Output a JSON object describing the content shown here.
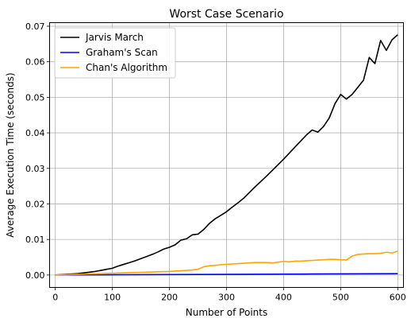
{
  "chart_data": {
    "type": "line",
    "title": "Worst Case Scenario",
    "xlabel": "Number of Points",
    "ylabel": "Average Execution Time (seconds)",
    "xlim": [
      -10,
      610
    ],
    "ylim": [
      -0.0035,
      0.071
    ],
    "xticks": [
      0,
      100,
      200,
      300,
      400,
      500,
      600
    ],
    "yticks": [
      0.0,
      0.01,
      0.02,
      0.03,
      0.04,
      0.05,
      0.06,
      0.07
    ],
    "ytick_labels": [
      "0.00",
      "0.01",
      "0.02",
      "0.03",
      "0.04",
      "0.05",
      "0.06",
      "0.07"
    ],
    "grid": true,
    "legend": "top-left",
    "series": [
      {
        "name": "Jarvis March",
        "color": "#000000",
        "x": [
          0,
          10,
          20,
          30,
          40,
          50,
          60,
          70,
          80,
          90,
          100,
          110,
          120,
          130,
          140,
          150,
          160,
          170,
          180,
          190,
          200,
          210,
          220,
          230,
          240,
          250,
          260,
          270,
          280,
          290,
          300,
          310,
          320,
          330,
          340,
          350,
          360,
          370,
          380,
          390,
          400,
          410,
          420,
          430,
          440,
          450,
          460,
          470,
          480,
          490,
          500,
          510,
          520,
          530,
          540,
          550,
          560,
          570,
          580,
          590,
          600
        ],
        "values": [
          0,
          0.0001,
          0.0002,
          0.0003,
          0.0004,
          0.0006,
          0.0008,
          0.001,
          0.0013,
          0.0016,
          0.0019,
          0.0025,
          0.003,
          0.0035,
          0.004,
          0.0046,
          0.0052,
          0.0058,
          0.0065,
          0.0073,
          0.0078,
          0.0085,
          0.0098,
          0.0102,
          0.0113,
          0.0115,
          0.0128,
          0.0145,
          0.0158,
          0.0168,
          0.0178,
          0.0191,
          0.0203,
          0.0216,
          0.0232,
          0.0248,
          0.0263,
          0.0278,
          0.0294,
          0.031,
          0.0326,
          0.0343,
          0.036,
          0.0377,
          0.0394,
          0.0408,
          0.0402,
          0.0418,
          0.0442,
          0.0482,
          0.0508,
          0.0495,
          0.0508,
          0.0528,
          0.0548,
          0.0612,
          0.0595,
          0.066,
          0.0632,
          0.0662,
          0.0676
        ]
      },
      {
        "name": "Graham's Scan",
        "color": "#0000ff",
        "x": [
          0,
          50,
          100,
          150,
          200,
          250,
          300,
          350,
          400,
          450,
          500,
          550,
          600
        ],
        "values": [
          0,
          3e-05,
          6e-05,
          9e-05,
          0.00012,
          0.00015,
          0.00018,
          0.00021,
          0.00025,
          0.00028,
          0.00031,
          0.00035,
          0.00038
        ]
      },
      {
        "name": "Chan's Algorithm",
        "color": "#ffa500",
        "x": [
          0,
          10,
          20,
          30,
          40,
          50,
          60,
          70,
          80,
          90,
          100,
          110,
          120,
          130,
          140,
          150,
          160,
          170,
          180,
          190,
          200,
          210,
          220,
          230,
          240,
          250,
          260,
          270,
          280,
          290,
          300,
          310,
          320,
          330,
          340,
          350,
          360,
          370,
          380,
          390,
          400,
          410,
          420,
          430,
          440,
          450,
          460,
          470,
          480,
          490,
          500,
          510,
          520,
          530,
          540,
          550,
          560,
          570,
          580,
          590,
          600
        ],
        "values": [
          0,
          5e-05,
          0.0001,
          0.00015,
          0.0002,
          0.00025,
          0.0003,
          0.00035,
          0.0004,
          0.00045,
          0.0005,
          0.00055,
          0.0006,
          0.00065,
          0.0007,
          0.00075,
          0.0008,
          0.00085,
          0.0009,
          0.00095,
          0.001,
          0.0011,
          0.0012,
          0.0013,
          0.0014,
          0.0016,
          0.0023,
          0.0026,
          0.0027,
          0.0029,
          0.003,
          0.0031,
          0.0032,
          0.0033,
          0.0034,
          0.0035,
          0.0035,
          0.0035,
          0.0034,
          0.0036,
          0.0038,
          0.0037,
          0.0039,
          0.0039,
          0.004,
          0.0041,
          0.0042,
          0.0043,
          0.0044,
          0.0044,
          0.0043,
          0.0042,
          0.0053,
          0.0058,
          0.0059,
          0.006,
          0.006,
          0.0061,
          0.0064,
          0.0062,
          0.0067
        ]
      }
    ]
  }
}
